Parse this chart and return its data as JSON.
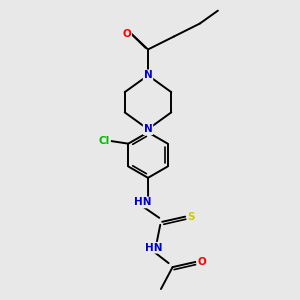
{
  "bg_color": "#e8e8e8",
  "bond_color": "#000000",
  "atom_colors": {
    "O": "#ff0000",
    "N": "#0000cc",
    "S": "#cccc00",
    "Cl": "#00bb00",
    "H": "#000000",
    "C": "#000000"
  },
  "figsize": [
    3.0,
    3.0
  ],
  "dpi": 100,
  "lw": 1.4,
  "fs": 7.5
}
